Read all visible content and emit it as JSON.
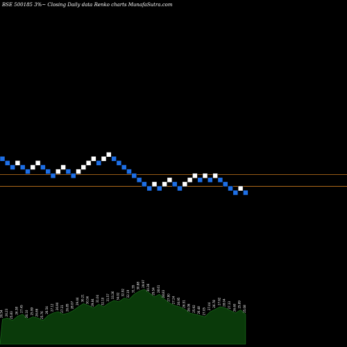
{
  "header": {
    "title": "BSE 500185 3%~  Closing Daily data  Renko  charts MunafaSutra.com"
  },
  "colors": {
    "background": "#000000",
    "brick_up": "#ffffff",
    "brick_down": "#1e6fe6",
    "reference_line": "#c8781e",
    "volume_fill": "#0a3a0a",
    "volume_stroke": "#1f7a1f"
  },
  "chart_data": {
    "type": "renko",
    "bricks": [
      {
        "level": 12,
        "dir": "down"
      },
      {
        "level": 11,
        "dir": "down"
      },
      {
        "level": 10,
        "dir": "down"
      },
      {
        "level": 11,
        "dir": "up"
      },
      {
        "level": 10,
        "dir": "down"
      },
      {
        "level": 9,
        "dir": "down"
      },
      {
        "level": 10,
        "dir": "up"
      },
      {
        "level": 11,
        "dir": "up"
      },
      {
        "level": 10,
        "dir": "down"
      },
      {
        "level": 9,
        "dir": "down"
      },
      {
        "level": 8,
        "dir": "down"
      },
      {
        "level": 9,
        "dir": "up"
      },
      {
        "level": 10,
        "dir": "up"
      },
      {
        "level": 9,
        "dir": "down"
      },
      {
        "level": 8,
        "dir": "down"
      },
      {
        "level": 9,
        "dir": "up"
      },
      {
        "level": 10,
        "dir": "up"
      },
      {
        "level": 11,
        "dir": "up"
      },
      {
        "level": 12,
        "dir": "up"
      },
      {
        "level": 11,
        "dir": "down"
      },
      {
        "level": 12,
        "dir": "up"
      },
      {
        "level": 13,
        "dir": "up"
      },
      {
        "level": 12,
        "dir": "down"
      },
      {
        "level": 11,
        "dir": "down"
      },
      {
        "level": 10,
        "dir": "down"
      },
      {
        "level": 9,
        "dir": "down"
      },
      {
        "level": 8,
        "dir": "down"
      },
      {
        "level": 7,
        "dir": "down"
      },
      {
        "level": 6,
        "dir": "down"
      },
      {
        "level": 5,
        "dir": "down"
      },
      {
        "level": 6,
        "dir": "up"
      },
      {
        "level": 5,
        "dir": "down"
      },
      {
        "level": 6,
        "dir": "up"
      },
      {
        "level": 7,
        "dir": "up"
      },
      {
        "level": 6,
        "dir": "down"
      },
      {
        "level": 5,
        "dir": "down"
      },
      {
        "level": 6,
        "dir": "up"
      },
      {
        "level": 7,
        "dir": "up"
      },
      {
        "level": 8,
        "dir": "up"
      },
      {
        "level": 7,
        "dir": "down"
      },
      {
        "level": 8,
        "dir": "up"
      },
      {
        "level": 7,
        "dir": "down"
      },
      {
        "level": 8,
        "dir": "up"
      },
      {
        "level": 7,
        "dir": "down"
      },
      {
        "level": 6,
        "dir": "down"
      },
      {
        "level": 5,
        "dir": "down"
      },
      {
        "level": 4,
        "dir": "down"
      },
      {
        "level": 5,
        "dir": "up"
      },
      {
        "level": 4,
        "dir": "down"
      }
    ],
    "reference_lines": [
      {
        "level": 8.3
      },
      {
        "level": 5.5
      }
    ],
    "volume": {
      "values": [
        40,
        42,
        38,
        45,
        48,
        40,
        44,
        42,
        38,
        46,
        50,
        52,
        48,
        50,
        54,
        60,
        65,
        62,
        58,
        64,
        60,
        66,
        70,
        68,
        74,
        72,
        80,
        85,
        88,
        82,
        76,
        80,
        72,
        66,
        62,
        60,
        56,
        50,
        48,
        46,
        44,
        52,
        56,
        60,
        58,
        54,
        50,
        55,
        48
      ],
      "labels": [
        "26.54",
        "26.23",
        "25.83",
        "26.38",
        "27.45",
        "26.10",
        "25.99",
        "26.66",
        "25.76",
        "26.54",
        "27.12",
        "26.90",
        "27.31",
        "26.85",
        "28.07",
        "29.44",
        "30.21",
        "30.56",
        "29.84",
        "31.04",
        "32.10",
        "31.57",
        "33.26",
        "34.02",
        "32.92",
        "32.19",
        "31.55",
        "30.88",
        "29.97",
        "30.36",
        "29.54",
        "28.61",
        "28.83",
        "27.90",
        "27.24",
        "26.95",
        "26.51",
        "26.06",
        "25.92",
        "26.48",
        "27.05",
        "27.44",
        "26.78",
        "27.62",
        "28.04",
        "27.33",
        "26.60",
        "25.89",
        "25.08"
      ]
    }
  }
}
